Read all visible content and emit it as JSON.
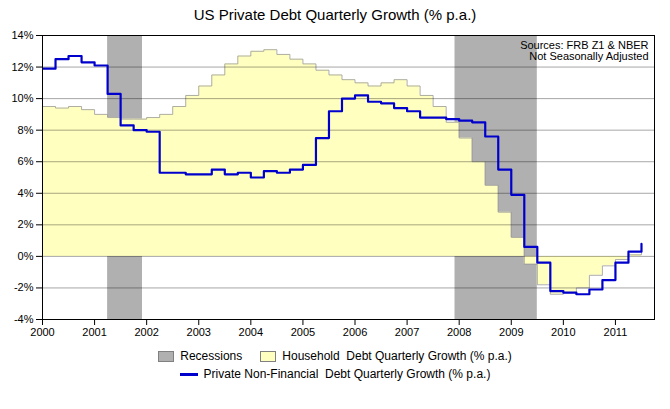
{
  "chart_data": {
    "type": "line",
    "title": "US Private Debt Quarterly Growth (% p.a.)",
    "annotation": "Sources: FRB Z1 & NBER\nNot Seasonally Adjusted",
    "recessions": {
      "name": "Recessions",
      "color": "#b0b0b0",
      "spans": [
        [
          2001.25,
          2001.92
        ],
        [
          2007.92,
          2009.5
        ]
      ]
    },
    "x": [
      2000.0,
      2000.25,
      2000.5,
      2000.75,
      2001.0,
      2001.25,
      2001.5,
      2001.75,
      2002.0,
      2002.25,
      2002.5,
      2002.75,
      2003.0,
      2003.25,
      2003.5,
      2003.75,
      2004.0,
      2004.25,
      2004.5,
      2004.75,
      2005.0,
      2005.25,
      2005.5,
      2005.75,
      2006.0,
      2006.25,
      2006.5,
      2006.75,
      2007.0,
      2007.25,
      2007.5,
      2007.75,
      2008.0,
      2008.25,
      2008.5,
      2008.75,
      2009.0,
      2009.25,
      2009.5,
      2009.75,
      2010.0,
      2010.25,
      2010.5,
      2010.75,
      2011.0,
      2011.25,
      2011.5
    ],
    "series": [
      {
        "name": "Household  Debt Quarterly Growth (% p.a.)",
        "type": "area",
        "color": "#ffffc0",
        "values": [
          9.5,
          9.4,
          9.5,
          9.3,
          9.0,
          8.8,
          8.7,
          8.7,
          8.8,
          9.0,
          9.5,
          10.2,
          10.8,
          11.5,
          12.2,
          12.7,
          13.0,
          13.1,
          12.8,
          12.5,
          12.2,
          11.8,
          11.5,
          11.2,
          11.0,
          10.8,
          11.0,
          11.2,
          10.8,
          10.2,
          9.5,
          8.5,
          7.5,
          6.0,
          4.5,
          2.8,
          1.2,
          -0.5,
          -1.8,
          -2.4,
          -2.3,
          -2.0,
          -1.2,
          -0.6,
          -0.2,
          0.1,
          0.3
        ]
      },
      {
        "name": "Private Non-Financial  Debt Quarterly Growth (% p.a.)",
        "type": "line",
        "color": "#0000cc",
        "values": [
          11.9,
          12.5,
          12.7,
          12.3,
          12.1,
          10.3,
          8.3,
          8.0,
          7.9,
          5.3,
          5.3,
          5.2,
          5.2,
          5.5,
          5.2,
          5.3,
          5.0,
          5.4,
          5.3,
          5.5,
          5.8,
          7.5,
          9.2,
          10.0,
          10.2,
          9.8,
          9.7,
          9.4,
          9.2,
          8.8,
          8.8,
          8.7,
          8.6,
          8.5,
          7.6,
          5.5,
          3.9,
          0.6,
          -0.4,
          -2.2,
          -2.3,
          -2.4,
          -2.1,
          -1.5,
          -0.4,
          0.3,
          0.8
        ]
      }
    ],
    "xlim": [
      2000.0,
      2011.75
    ],
    "xticks": [
      2000,
      2001,
      2002,
      2003,
      2004,
      2005,
      2006,
      2007,
      2008,
      2009,
      2010,
      2011
    ],
    "ylim": [
      -4,
      14
    ],
    "yticks": [
      {
        "value": -4,
        "label": "-4%"
      },
      {
        "value": -2,
        "label": "-2%"
      },
      {
        "value": 0,
        "label": "0%"
      },
      {
        "value": 2,
        "label": "2%"
      },
      {
        "value": 4,
        "label": "4%"
      },
      {
        "value": 6,
        "label": "6%"
      },
      {
        "value": 8,
        "label": "8%"
      },
      {
        "value": 10,
        "label": "10%"
      },
      {
        "value": 12,
        "label": "12%"
      },
      {
        "value": 14,
        "label": "14%"
      }
    ],
    "grid": true,
    "legend": "bottom"
  }
}
